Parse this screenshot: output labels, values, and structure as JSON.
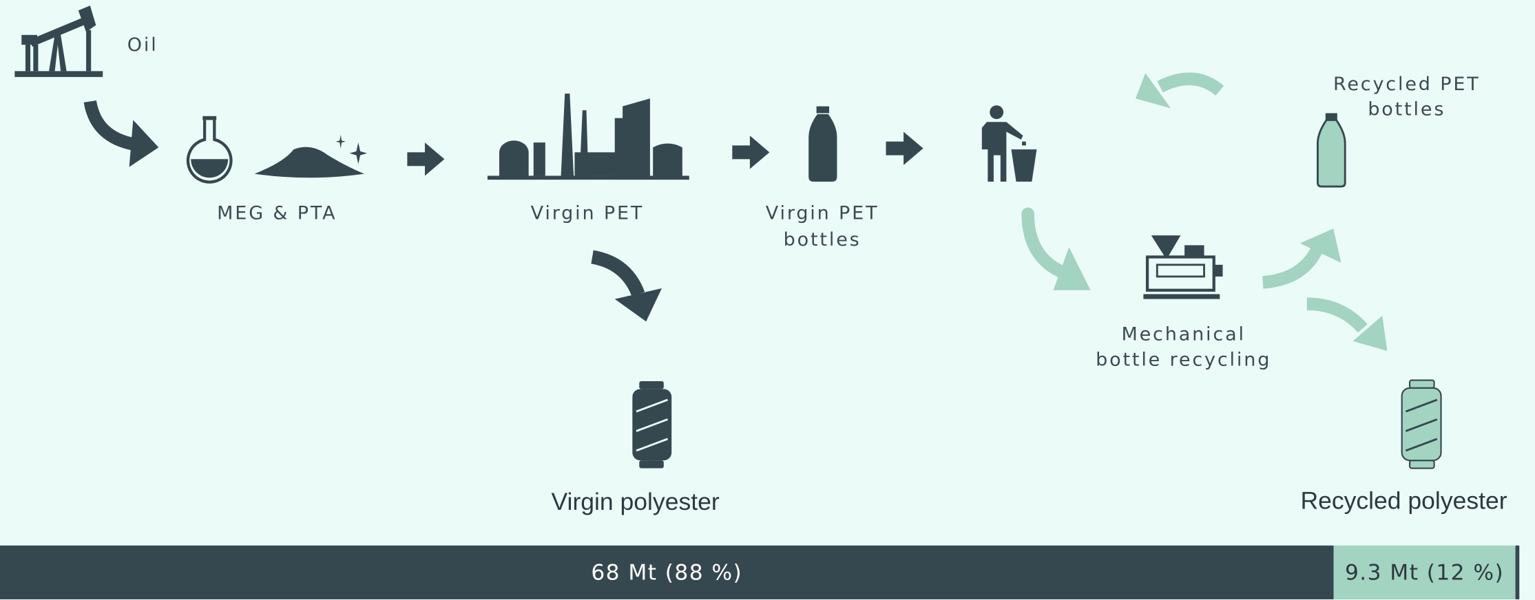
{
  "nodes": [
    {
      "lines": [
        "Oil"
      ]
    },
    {
      "lines": [
        "MEG & PTA"
      ]
    },
    {
      "lines": [
        "Virgin PET"
      ]
    },
    {
      "lines": [
        "Virgin PET",
        "bottles"
      ]
    },
    {
      "lines": [
        "Recycled PET",
        "bottles"
      ]
    },
    {
      "lines": [
        "Mechanical",
        "bottle recycling"
      ]
    },
    {
      "lines": [
        "Virgin polyester"
      ]
    },
    {
      "lines": [
        "Recycled polyester"
      ]
    }
  ],
  "bar": {
    "values": [
      88,
      12
    ],
    "value_labels": [
      "68 Mt (88 %)",
      "9.3 Mt (12 %)"
    ]
  }
}
